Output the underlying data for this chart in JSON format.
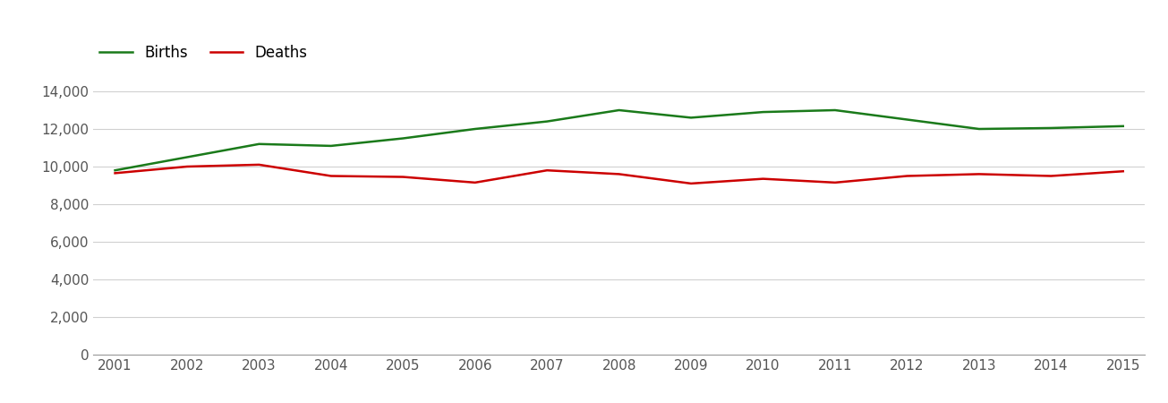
{
  "years": [
    2001,
    2002,
    2003,
    2004,
    2005,
    2006,
    2007,
    2008,
    2009,
    2010,
    2011,
    2012,
    2013,
    2014,
    2015
  ],
  "births": [
    9800,
    10500,
    11200,
    11100,
    11500,
    12000,
    12400,
    13000,
    12600,
    12900,
    13000,
    12500,
    12000,
    12050,
    12150
  ],
  "deaths": [
    9650,
    10000,
    10100,
    9500,
    9450,
    9150,
    9800,
    9600,
    9100,
    9350,
    9150,
    9500,
    9600,
    9500,
    9750
  ],
  "births_color": "#1a7a1a",
  "deaths_color": "#cc0000",
  "background_color": "#ffffff",
  "grid_color": "#d0d0d0",
  "ylim": [
    0,
    15000
  ],
  "yticks": [
    0,
    2000,
    4000,
    6000,
    8000,
    10000,
    12000,
    14000
  ],
  "line_width": 1.8,
  "legend_births": "Births",
  "legend_deaths": "Deaths",
  "tick_fontsize": 11,
  "legend_fontsize": 12
}
